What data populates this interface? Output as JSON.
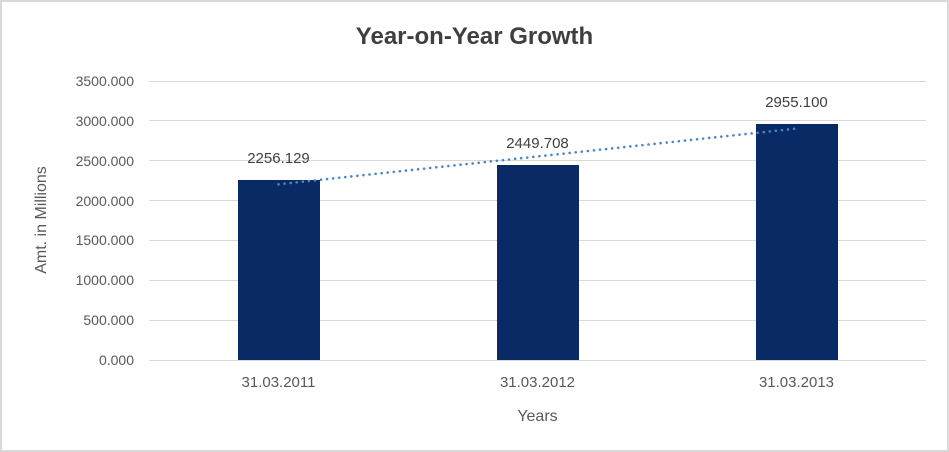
{
  "window": {
    "background_color": "#ffffff",
    "border_color": "#d9d9d9"
  },
  "chart_data": {
    "type": "bar",
    "title": "Year-on-Year Growth",
    "xlabel": "Years",
    "ylabel": "Amt. in Millions",
    "categories": [
      "31.03.2011",
      "31.03.2012",
      "31.03.2013"
    ],
    "values": [
      2256.129,
      2449.708,
      2955.1
    ],
    "data_labels": [
      "2256.129",
      "2449.708",
      "2955.100"
    ],
    "ylim": [
      0,
      3500
    ],
    "y_ticks": [
      {
        "value": 3500,
        "label": "3500.000"
      },
      {
        "value": 3000,
        "label": "3000.000"
      },
      {
        "value": 2500,
        "label": "2500.000"
      },
      {
        "value": 2000,
        "label": "2000.000"
      },
      {
        "value": 1500,
        "label": "1500.000"
      },
      {
        "value": 1000,
        "label": "1000.000"
      },
      {
        "value": 500,
        "label": "500.000"
      },
      {
        "value": 0,
        "label": "0.000"
      }
    ],
    "grid": true,
    "legend": false,
    "bar_color": "#0a2a66",
    "gridline_color": "#d9d9d9",
    "title_color": "#3f3f3f",
    "axis_text_color": "#595959",
    "data_label_color": "#404040",
    "trendline": {
      "type": "linear",
      "style": "dotted",
      "color": "#4a86c8"
    }
  }
}
